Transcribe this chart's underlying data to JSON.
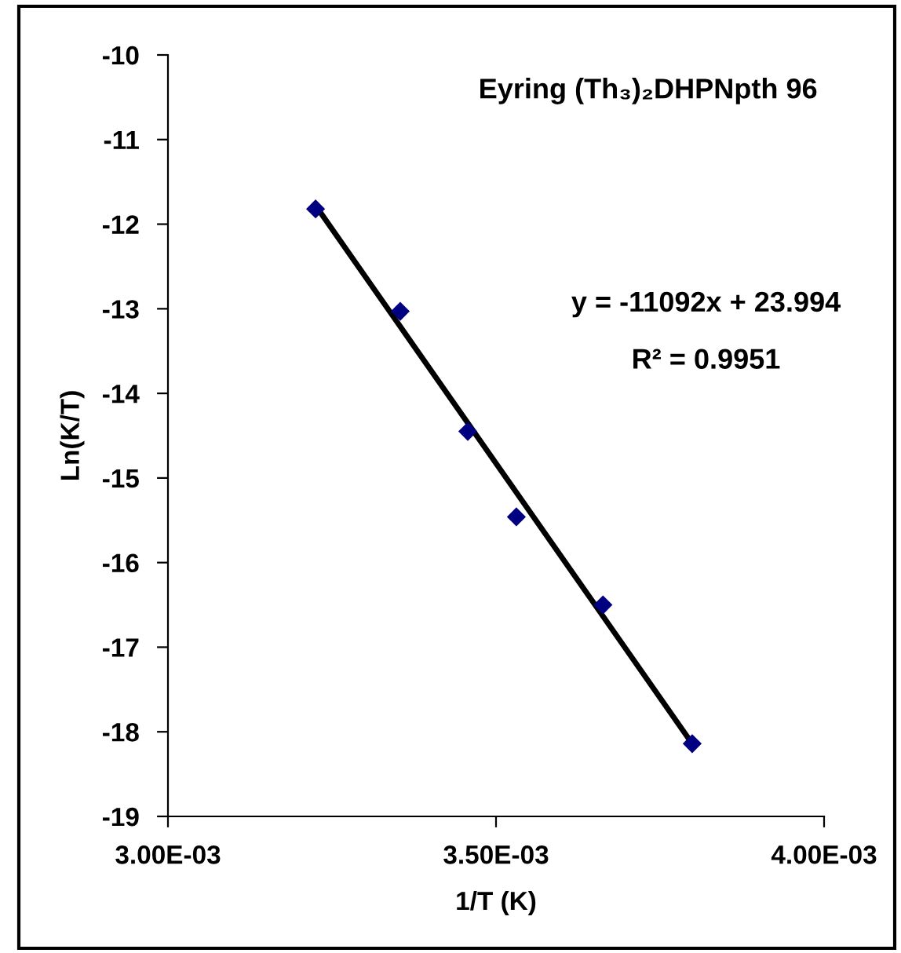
{
  "chart_data": {
    "type": "scatter",
    "title": "Eyring (Th₃)₂DHPNpth 96",
    "xlabel": "1/T (K)",
    "ylabel": "Ln(K/T)",
    "annotations": [
      "y = -11092x + 23.994",
      "R² = 0.9951"
    ],
    "series": [
      {
        "color": "#000080",
        "marker": "diamond",
        "x": [
          0.003225,
          0.003354,
          0.003457,
          0.003531,
          0.003663,
          0.003799
        ],
        "values": [
          -11.82,
          -13.03,
          -14.45,
          -15.46,
          -16.5,
          -18.14
        ]
      },
      {
        "type": "line",
        "color": "#000000",
        "marker": "none",
        "x": [
          0.003225,
          0.003799
        ],
        "values": [
          -11.78,
          -18.14
        ]
      }
    ],
    "xlim": [
      0.003,
      0.004
    ],
    "ylim": [
      -19,
      -10
    ],
    "xticks": [
      {
        "value": 0.003,
        "label": "3.00E-03"
      },
      {
        "value": 0.0035,
        "label": "3.50E-03"
      },
      {
        "value": 0.004,
        "label": "4.00E-03"
      }
    ],
    "yticks": [
      -19,
      -18,
      -17,
      -16,
      -15,
      -14,
      -13,
      -12,
      -11,
      -10
    ],
    "grid": false,
    "legend": false
  }
}
